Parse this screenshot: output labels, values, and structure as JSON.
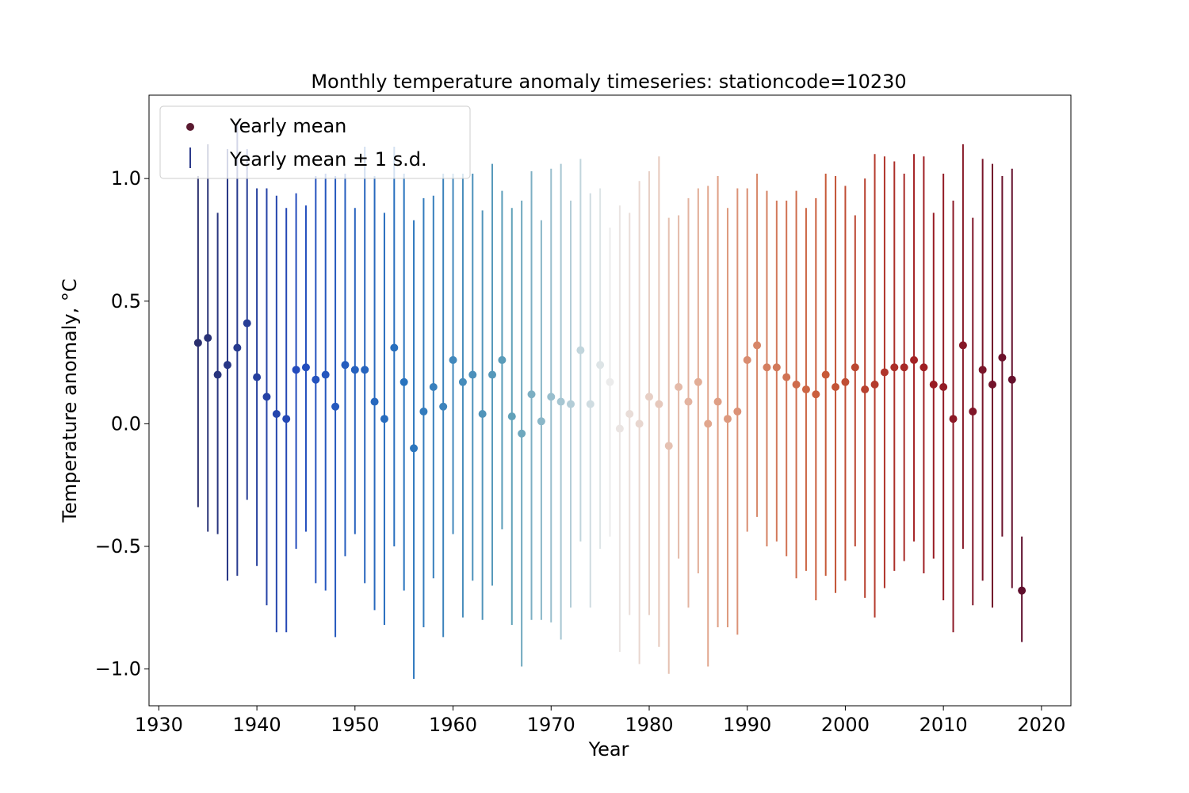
{
  "chart_data": {
    "type": "scatter",
    "title": "Monthly temperature anomaly timeseries: stationcode=10230",
    "xlabel": "Year",
    "ylabel": "Temperature anomaly, °C",
    "xlim": [
      1929,
      2023
    ],
    "ylim": [
      -1.15,
      1.34
    ],
    "xticks": [
      1930,
      1940,
      1950,
      1960,
      1970,
      1980,
      1990,
      2000,
      2010,
      2020
    ],
    "xtick_labels": [
      "1930",
      "1940",
      "1950",
      "1960",
      "1970",
      "1980",
      "1990",
      "2000",
      "2010",
      "2020"
    ],
    "yticks": [
      -1.0,
      -0.5,
      0.0,
      0.5,
      1.0
    ],
    "ytick_labels": [
      "−1.0",
      "−0.5",
      "0.0",
      "0.5",
      "1.0"
    ],
    "grid": false,
    "legend": {
      "position": "top-left",
      "entries": [
        "Yearly mean",
        "Yearly mean ± 1 s.d."
      ]
    },
    "colormap": "blue-white-red (by year)",
    "years": [
      1934,
      1935,
      1936,
      1937,
      1938,
      1939,
      1940,
      1941,
      1942,
      1943,
      1944,
      1945,
      1946,
      1947,
      1948,
      1949,
      1950,
      1951,
      1952,
      1953,
      1954,
      1955,
      1956,
      1957,
      1958,
      1959,
      1960,
      1961,
      1962,
      1963,
      1964,
      1965,
      1966,
      1967,
      1968,
      1969,
      1970,
      1971,
      1972,
      1973,
      1974,
      1975,
      1976,
      1977,
      1978,
      1979,
      1980,
      1981,
      1982,
      1983,
      1984,
      1985,
      1986,
      1987,
      1988,
      1989,
      1990,
      1991,
      1992,
      1993,
      1994,
      1995,
      1996,
      1997,
      1998,
      1999,
      2000,
      2001,
      2002,
      2003,
      2004,
      2005,
      2006,
      2007,
      2008,
      2009,
      2010,
      2011,
      2012,
      2013,
      2014,
      2015,
      2016,
      2017,
      2018
    ],
    "mean": [
      0.33,
      0.35,
      0.2,
      0.24,
      0.31,
      0.41,
      0.19,
      0.11,
      0.04,
      0.02,
      0.22,
      0.23,
      0.18,
      0.2,
      0.07,
      0.24,
      0.22,
      0.22,
      0.09,
      0.02,
      0.31,
      0.17,
      -0.1,
      0.05,
      0.15,
      0.07,
      0.26,
      0.17,
      0.2,
      0.04,
      0.2,
      0.26,
      0.03,
      -0.04,
      0.12,
      0.01,
      0.11,
      0.09,
      0.08,
      0.3,
      0.08,
      0.24,
      0.17,
      -0.02,
      0.04,
      0.0,
      0.11,
      0.08,
      -0.09,
      0.15,
      0.09,
      0.17,
      0.0,
      0.09,
      0.02,
      0.05,
      0.26,
      0.32,
      0.23,
      0.23,
      0.19,
      0.16,
      0.14,
      0.12,
      0.2,
      0.15,
      0.17,
      0.23,
      0.14,
      0.16,
      0.21,
      0.23,
      0.23,
      0.26,
      0.23,
      0.16,
      0.15,
      0.02,
      0.32,
      0.05,
      0.22,
      0.16,
      0.27,
      0.18,
      -0.68
    ],
    "upper": [
      1.01,
      1.14,
      0.86,
      1.12,
      1.23,
      1.12,
      0.96,
      0.96,
      0.93,
      0.88,
      0.94,
      0.89,
      1.01,
      1.02,
      1.01,
      1.02,
      0.88,
      1.13,
      1.01,
      0.86,
      1.13,
      1.02,
      0.83,
      0.92,
      0.93,
      1.02,
      1.02,
      1.02,
      1.02,
      0.87,
      1.06,
      0.95,
      0.88,
      0.91,
      1.03,
      0.83,
      1.04,
      1.06,
      0.91,
      1.08,
      0.94,
      0.96,
      0.8,
      0.89,
      0.86,
      0.99,
      1.03,
      1.09,
      0.84,
      0.85,
      0.92,
      0.96,
      0.97,
      1.01,
      0.88,
      0.96,
      0.96,
      1.02,
      0.95,
      0.91,
      0.91,
      0.95,
      0.88,
      0.92,
      1.02,
      1.01,
      0.97,
      0.85,
      1.0,
      1.1,
      1.09,
      1.07,
      1.02,
      1.1,
      1.09,
      0.86,
      1.02,
      0.91,
      1.14,
      0.84,
      1.08,
      1.06,
      1.01,
      1.04,
      -0.46
    ],
    "lower": [
      -0.34,
      -0.44,
      -0.45,
      -0.64,
      -0.62,
      -0.31,
      -0.58,
      -0.74,
      -0.85,
      -0.85,
      -0.51,
      -0.44,
      -0.65,
      -0.68,
      -0.87,
      -0.54,
      -0.45,
      -0.65,
      -0.76,
      -0.82,
      -0.5,
      -0.68,
      -1.04,
      -0.83,
      -0.63,
      -0.87,
      -0.45,
      -0.79,
      -0.64,
      -0.8,
      -0.66,
      -0.43,
      -0.82,
      -0.99,
      -0.8,
      -0.8,
      -0.81,
      -0.88,
      -0.75,
      -0.48,
      -0.75,
      -0.51,
      -0.46,
      -0.93,
      -0.78,
      -0.98,
      -0.78,
      -0.91,
      -1.02,
      -0.55,
      -0.75,
      -0.61,
      -0.99,
      -0.83,
      -0.83,
      -0.86,
      -0.44,
      -0.38,
      -0.5,
      -0.48,
      -0.54,
      -0.63,
      -0.6,
      -0.72,
      -0.62,
      -0.69,
      -0.64,
      -0.5,
      -0.71,
      -0.79,
      -0.67,
      -0.6,
      -0.56,
      -0.48,
      -0.61,
      -0.55,
      -0.72,
      -0.85,
      -0.51,
      -0.74,
      -0.64,
      -0.75,
      -0.46,
      -0.67,
      -0.89
    ]
  }
}
